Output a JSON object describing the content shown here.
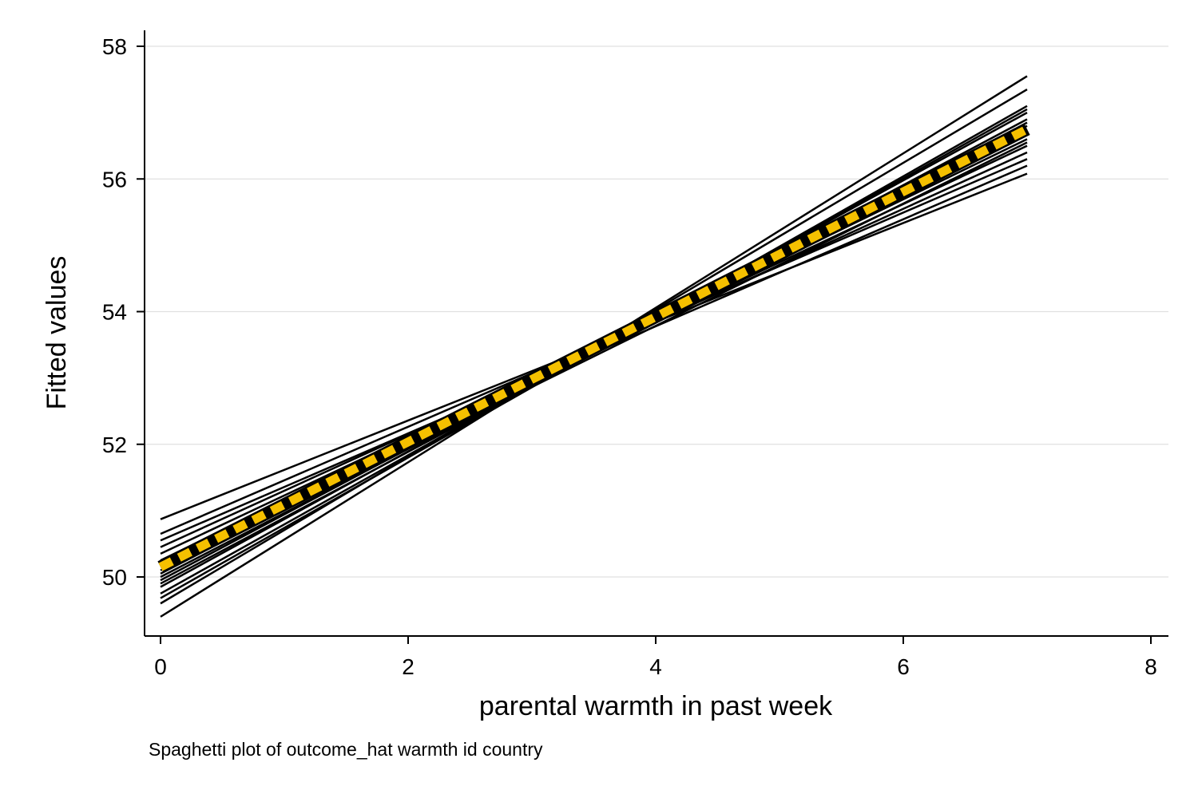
{
  "chart_data": {
    "type": "line",
    "xlabel": "parental warmth in past week",
    "ylabel": "Fitted values",
    "note": "Spaghetti plot of outcome_hat warmth id country",
    "xlim": [
      0,
      8
    ],
    "ylim": [
      49.2,
      58.3
    ],
    "xticks": [
      0,
      2,
      4,
      6,
      8
    ],
    "yticks": [
      50,
      52,
      54,
      56,
      58
    ],
    "grid": "horizontal",
    "legend": "none",
    "colors": {
      "country_lines": "#000000",
      "average_line": "#f5c000",
      "grid": "#e0e0e0"
    },
    "country_lines": [
      {
        "x": [
          0,
          7
        ],
        "y": [
          50.87,
          56.08
        ]
      },
      {
        "x": [
          0,
          7
        ],
        "y": [
          50.65,
          56.3
        ]
      },
      {
        "x": [
          0,
          7
        ],
        "y": [
          50.55,
          56.2
        ]
      },
      {
        "x": [
          0,
          7
        ],
        "y": [
          50.45,
          56.4
        ]
      },
      {
        "x": [
          0,
          7
        ],
        "y": [
          50.35,
          56.5
        ]
      },
      {
        "x": [
          0,
          7
        ],
        "y": [
          50.25,
          56.6
        ]
      },
      {
        "x": [
          0,
          7
        ],
        "y": [
          50.15,
          56.7
        ]
      },
      {
        "x": [
          0,
          7
        ],
        "y": [
          50.1,
          56.55
        ]
      },
      {
        "x": [
          0,
          7
        ],
        "y": [
          50.05,
          56.8
        ]
      },
      {
        "x": [
          0,
          7
        ],
        "y": [
          50.0,
          56.75
        ]
      },
      {
        "x": [
          0,
          7
        ],
        "y": [
          49.95,
          56.9
        ]
      },
      {
        "x": [
          0,
          7
        ],
        "y": [
          49.9,
          56.85
        ]
      },
      {
        "x": [
          0,
          7
        ],
        "y": [
          49.85,
          57.0
        ]
      },
      {
        "x": [
          0,
          7
        ],
        "y": [
          49.75,
          57.05
        ]
      },
      {
        "x": [
          0,
          7
        ],
        "y": [
          49.68,
          57.1
        ]
      },
      {
        "x": [
          0,
          7
        ],
        "y": [
          49.6,
          57.35
        ]
      },
      {
        "x": [
          0,
          7
        ],
        "y": [
          49.4,
          57.55
        ]
      }
    ],
    "average_line": {
      "x": [
        0,
        7
      ],
      "y": [
        50.15,
        56.75
      ]
    }
  }
}
